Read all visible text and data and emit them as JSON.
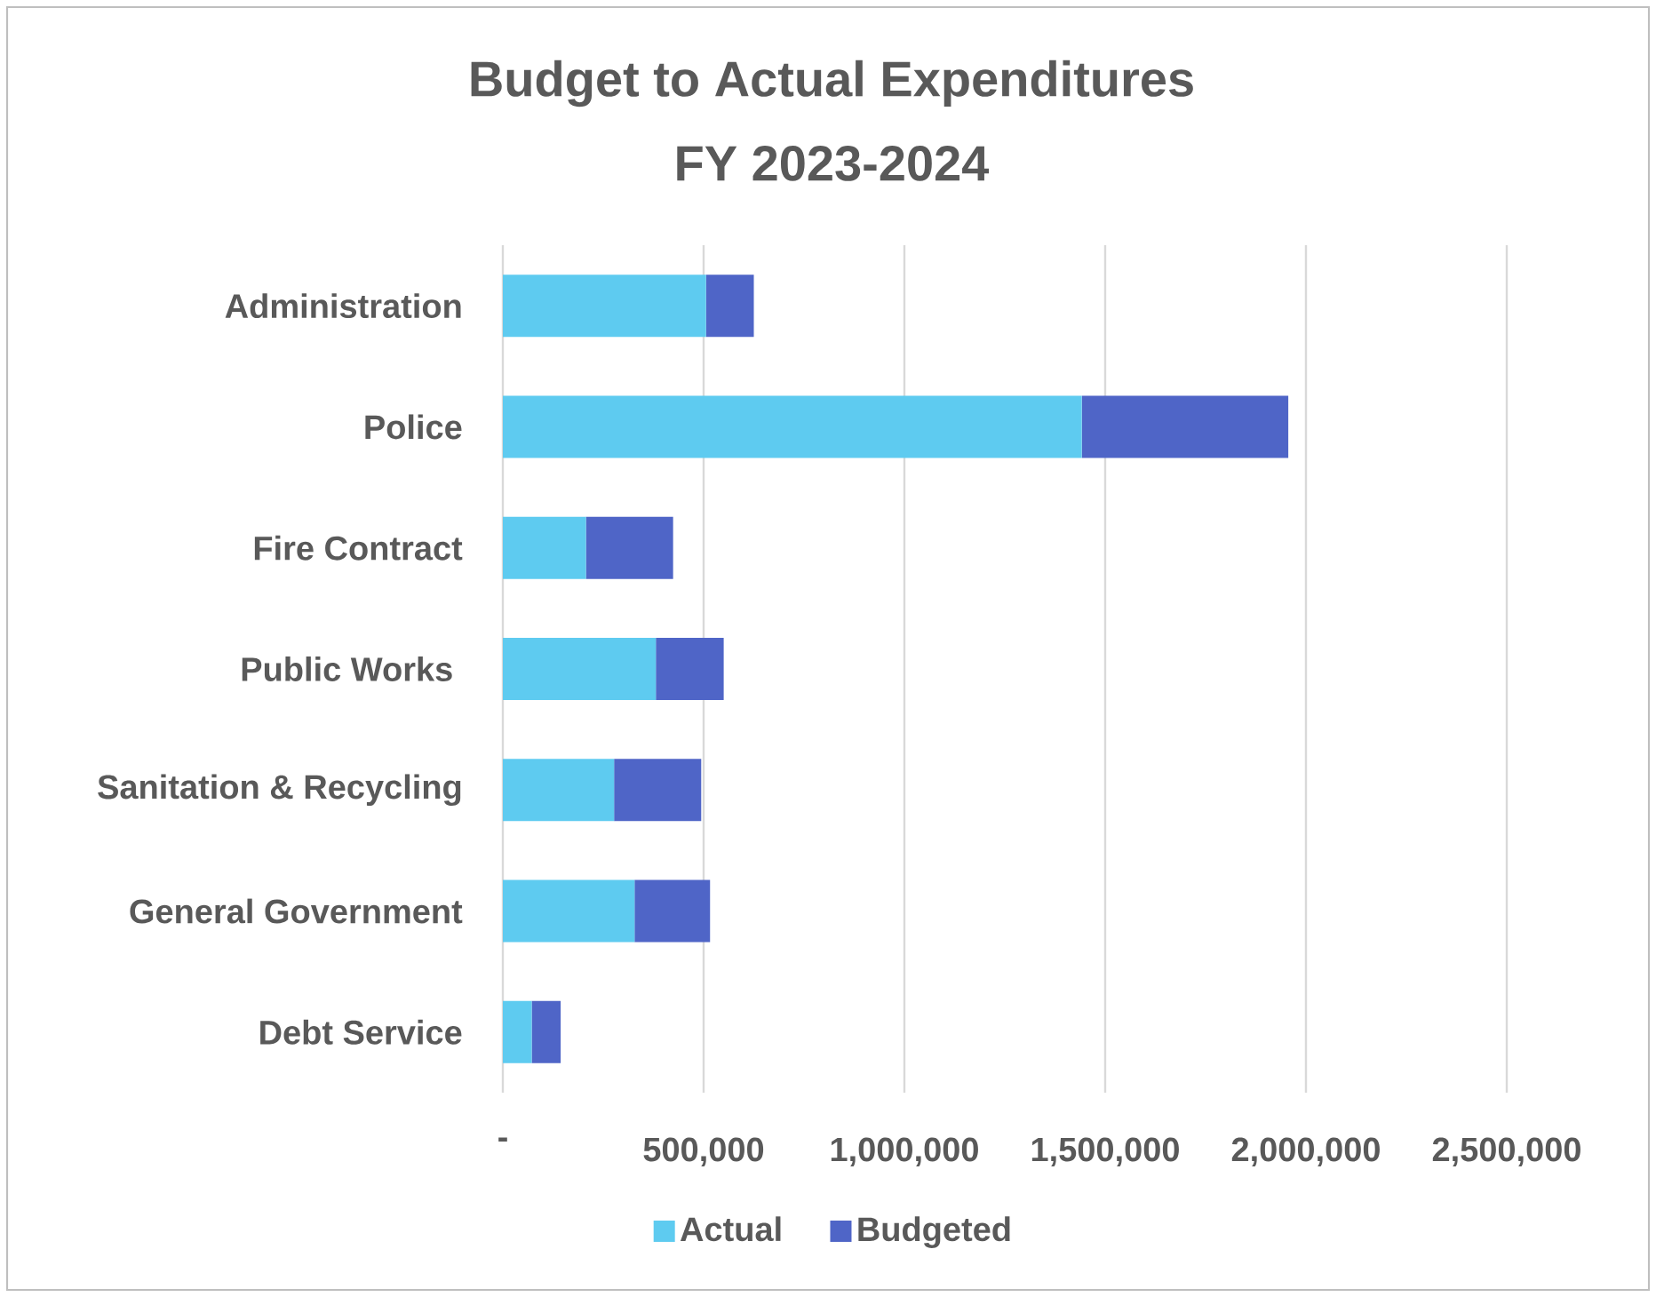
{
  "chart_data": {
    "type": "bar",
    "orientation": "horizontal",
    "stacked": true,
    "title": "Budget to Actual Expenditures",
    "subtitle": "FY 2023-2024",
    "categories": [
      "Administration",
      "Police",
      "Fire Contract",
      "Public Works ",
      "Sanitation & Recycling",
      "General Government",
      "Debt Service"
    ],
    "series": [
      {
        "name": "Actual",
        "color": "#5ecbf0",
        "values": [
          506000,
          1442000,
          207000,
          381000,
          277000,
          328000,
          72000
        ]
      },
      {
        "name": "Budgeted",
        "color": "#4f65c7",
        "values": [
          119000,
          514000,
          217000,
          169000,
          217000,
          188000,
          72000
        ]
      }
    ],
    "xlim": [
      0,
      2500000
    ],
    "xticks": [
      {
        "value": 0,
        "label": "-"
      },
      {
        "value": 500000,
        "label": "500,000"
      },
      {
        "value": 1000000,
        "label": "1,000,000"
      },
      {
        "value": 1500000,
        "label": "1,500,000"
      },
      {
        "value": 2000000,
        "label": "2,000,000"
      },
      {
        "value": 2500000,
        "label": "2,500,000"
      }
    ],
    "grid": "x",
    "legend": "bottom"
  }
}
